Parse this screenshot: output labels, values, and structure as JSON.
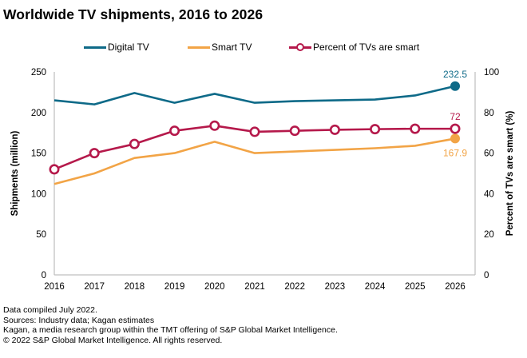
{
  "colors": {
    "digital_tv": "#0e6a88",
    "smart_tv": "#f2a446",
    "percent_smart": "#b5194b",
    "axis": "#bfbfbf"
  },
  "chart_data": {
    "type": "line",
    "title": "Worldwide TV shipments, 2016 to 2026",
    "x": [
      "2016",
      "2017",
      "2018",
      "2019",
      "2020",
      "2021",
      "2022",
      "2023",
      "2024",
      "2025",
      "2026"
    ],
    "ylabel": "Shipments (million)",
    "ylabel_right": "Percent of TVs are smart (%)",
    "ylim": [
      0,
      250
    ],
    "ylim_right": [
      0,
      100
    ],
    "yticks": [
      "0",
      "50",
      "100",
      "150",
      "200",
      "250"
    ],
    "yticks_right": [
      "0",
      "20",
      "40",
      "60",
      "80",
      "100"
    ],
    "grid": false,
    "legend_position": "top-center",
    "series": [
      {
        "name": "Digital TV",
        "axis": "left",
        "color_key": "digital_tv",
        "values": [
          215,
          210,
          224,
          212,
          223,
          212,
          214,
          215,
          216,
          221,
          232.5
        ],
        "end_label": "232.5"
      },
      {
        "name": "Smart TV",
        "axis": "left",
        "color_key": "smart_tv",
        "values": [
          112,
          125,
          144,
          150,
          164,
          150,
          152,
          154,
          156,
          159,
          167.9
        ],
        "end_label": "167.9"
      },
      {
        "name": "Percent of TVs are smart",
        "axis": "right",
        "color_key": "percent_smart",
        "values": [
          52,
          60,
          64.5,
          71,
          73.5,
          70.5,
          71,
          71.5,
          71.8,
          72,
          72
        ],
        "end_label": "72"
      }
    ]
  },
  "footer": {
    "lines": [
      "Data compiled July 2022.",
      "Sources: Industry data; Kagan estimates",
      "Kagan, a media research group within the TMT offering of S&P Global Market Intelligence.",
      "© 2022 S&P Global Market Intelligence. All rights reserved."
    ]
  }
}
